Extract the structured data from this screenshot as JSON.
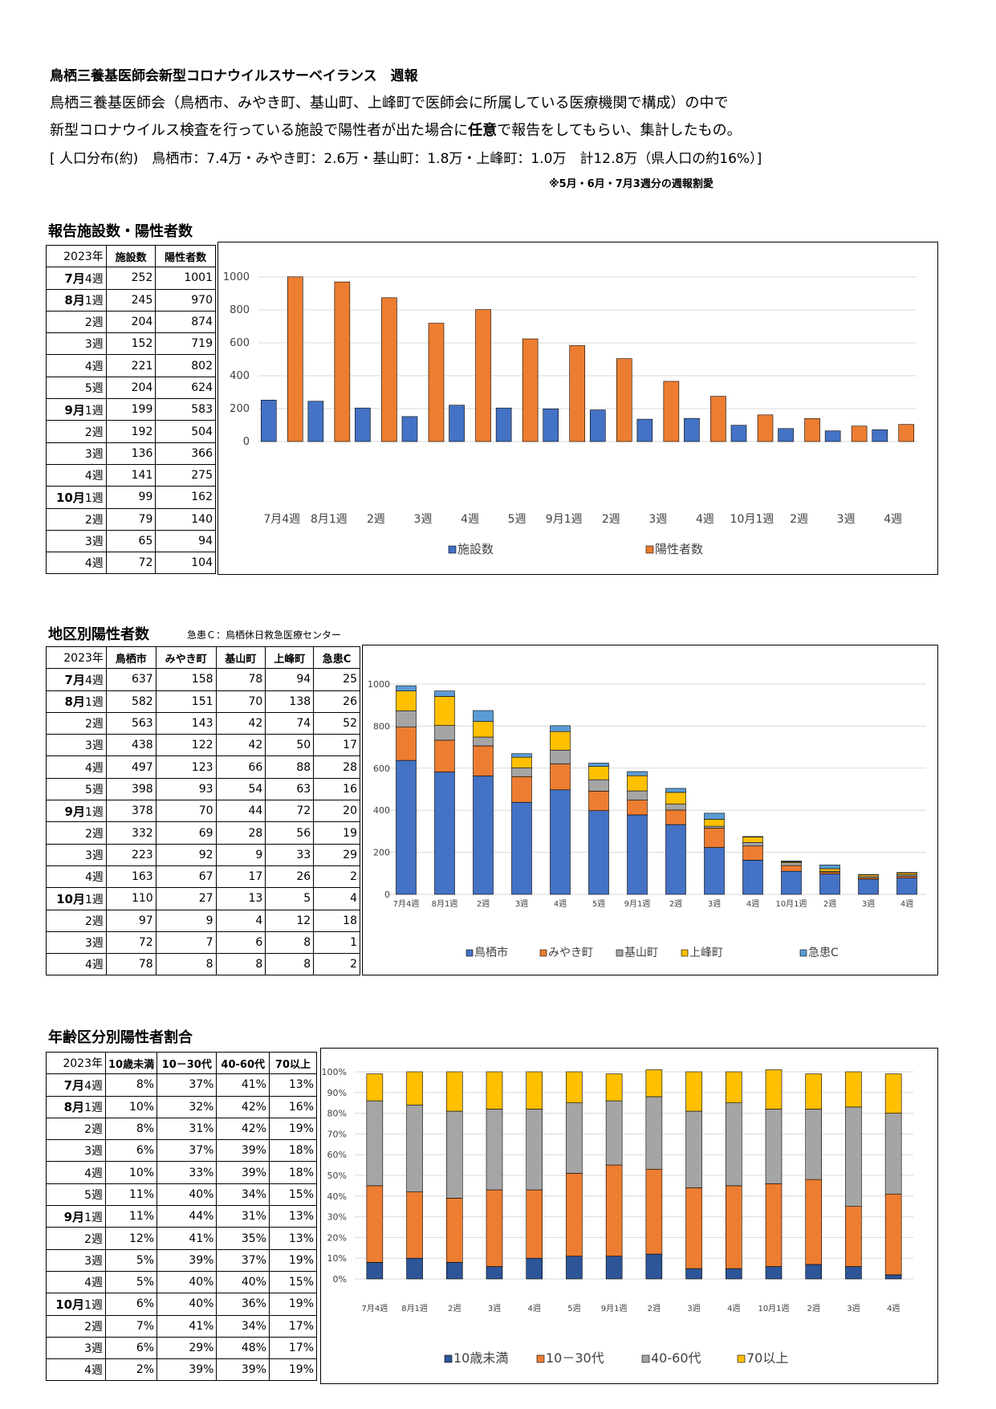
{
  "header": {
    "title": "鳥栖三養基医師会新型コロナウイルスサーベイランス　週報",
    "desc1": "鳥栖三養基医師会（鳥栖市、みやき町、基山町、上峰町で医師会に所属している医療機関で構成）の中で",
    "desc2_a": "新型コロナウイルス検査を行っている施設で陽性者が出た場合に",
    "desc2_b": "任意",
    "desc2_c": "で報告をしてもらい、集計したもの。",
    "population": "[ 人口分布(約)　鳥栖市：7.4万・みやき町：2.6万・基山町：1.8万・上峰町：1.0万　計12.8万（県人口の約16%）]",
    "note": "※5月・6月・7月3週分の週報割愛"
  },
  "week_labels": [
    {
      "month": "7月",
      "week": "4週"
    },
    {
      "month": "8月",
      "week": "1週"
    },
    {
      "month": "",
      "week": "2週"
    },
    {
      "month": "",
      "week": "3週"
    },
    {
      "month": "",
      "week": "4週"
    },
    {
      "month": "",
      "week": "5週"
    },
    {
      "month": "9月",
      "week": "1週"
    },
    {
      "month": "",
      "week": "2週"
    },
    {
      "month": "",
      "week": "3週"
    },
    {
      "month": "",
      "week": "4週"
    },
    {
      "month": "10月",
      "week": "1週"
    },
    {
      "month": "",
      "week": "2週"
    },
    {
      "month": "",
      "week": "3週"
    },
    {
      "month": "",
      "week": "4週"
    }
  ],
  "section1": {
    "title": "報告施設数・陽性者数",
    "table": {
      "headers": [
        "2023年",
        "施設数",
        "陽性者数"
      ],
      "rows": [
        [
          252,
          1001
        ],
        [
          245,
          970
        ],
        [
          204,
          874
        ],
        [
          152,
          719
        ],
        [
          221,
          802
        ],
        [
          204,
          624
        ],
        [
          199,
          583
        ],
        [
          192,
          504
        ],
        [
          136,
          366
        ],
        [
          141,
          275
        ],
        [
          99,
          162
        ],
        [
          79,
          140
        ],
        [
          65,
          94
        ],
        [
          72,
          104
        ]
      ]
    }
  },
  "section2": {
    "title": "地区別陽性者数",
    "note": "急患Ｃ：鳥栖休日救急医療センター",
    "table": {
      "headers": [
        "2023年",
        "鳥栖市",
        "みやき町",
        "基山町",
        "上峰町",
        "急患C"
      ],
      "rows": [
        [
          637,
          158,
          78,
          94,
          25
        ],
        [
          582,
          151,
          70,
          138,
          26
        ],
        [
          563,
          143,
          42,
          74,
          52
        ],
        [
          438,
          122,
          42,
          50,
          17
        ],
        [
          497,
          123,
          66,
          88,
          28
        ],
        [
          398,
          93,
          54,
          63,
          16
        ],
        [
          378,
          70,
          44,
          72,
          20
        ],
        [
          332,
          69,
          28,
          56,
          19
        ],
        [
          223,
          92,
          9,
          33,
          29
        ],
        [
          163,
          67,
          17,
          26,
          2
        ],
        [
          110,
          27,
          13,
          5,
          4
        ],
        [
          97,
          9,
          4,
          12,
          18
        ],
        [
          72,
          7,
          6,
          8,
          1
        ],
        [
          78,
          8,
          8,
          8,
          2
        ]
      ]
    }
  },
  "section3": {
    "title": "年齢区分別陽性者割合",
    "table": {
      "headers": [
        "2023年",
        "10歳未満",
        "10－30代",
        "40-60代",
        "70以上"
      ],
      "rows": [
        [
          "8%",
          "37%",
          "41%",
          "13%"
        ],
        [
          "10%",
          "32%",
          "42%",
          "16%"
        ],
        [
          "8%",
          "31%",
          "42%",
          "19%"
        ],
        [
          "6%",
          "37%",
          "39%",
          "18%"
        ],
        [
          "10%",
          "33%",
          "39%",
          "18%"
        ],
        [
          "11%",
          "40%",
          "34%",
          "15%"
        ],
        [
          "11%",
          "44%",
          "31%",
          "13%"
        ],
        [
          "12%",
          "41%",
          "35%",
          "13%"
        ],
        [
          "5%",
          "39%",
          "37%",
          "19%"
        ],
        [
          "5%",
          "40%",
          "40%",
          "15%"
        ],
        [
          "6%",
          "40%",
          "36%",
          "19%"
        ],
        [
          "7%",
          "41%",
          "34%",
          "17%"
        ],
        [
          "6%",
          "29%",
          "48%",
          "17%"
        ],
        [
          "2%",
          "39%",
          "39%",
          "19%"
        ]
      ]
    }
  },
  "chart_data": [
    {
      "type": "bar",
      "categories": [
        "7月4週",
        "8月1週",
        "2週",
        "3週",
        "4週",
        "5週",
        "9月1週",
        "2週",
        "3週",
        "4週",
        "10月1週",
        "2週",
        "3週",
        "4週"
      ],
      "series": [
        {
          "name": "施設数",
          "color": "#4472C4",
          "values": [
            252,
            245,
            204,
            152,
            221,
            204,
            199,
            192,
            136,
            141,
            99,
            79,
            65,
            72
          ]
        },
        {
          "name": "陽性者数",
          "color": "#ED7D31",
          "values": [
            1001,
            970,
            874,
            719,
            802,
            624,
            583,
            504,
            366,
            275,
            162,
            140,
            94,
            104
          ]
        }
      ],
      "ylim": [
        0,
        1000
      ],
      "yticks": [
        0,
        200,
        400,
        600,
        800,
        1000
      ],
      "grid": true,
      "legend": "bottom"
    },
    {
      "type": "bar",
      "stacked": true,
      "categories": [
        "7月4週",
        "8月1週",
        "2週",
        "3週",
        "4週",
        "5週",
        "9月1週",
        "2週",
        "3週",
        "4週",
        "10月1週",
        "2週",
        "3週",
        "4週"
      ],
      "series": [
        {
          "name": "鳥栖市",
          "color": "#4472C4",
          "values": [
            637,
            582,
            563,
            438,
            497,
            398,
            378,
            332,
            223,
            163,
            110,
            97,
            72,
            78
          ]
        },
        {
          "name": "みやき町",
          "color": "#ED7D31",
          "values": [
            158,
            151,
            143,
            122,
            123,
            93,
            70,
            69,
            92,
            67,
            27,
            9,
            7,
            8
          ]
        },
        {
          "name": "基山町",
          "color": "#A5A5A5",
          "values": [
            78,
            70,
            42,
            42,
            66,
            54,
            44,
            28,
            9,
            17,
            13,
            4,
            6,
            8
          ]
        },
        {
          "name": "上峰町",
          "color": "#FFC000",
          "values": [
            94,
            138,
            74,
            50,
            88,
            63,
            72,
            56,
            33,
            26,
            5,
            12,
            8,
            8
          ]
        },
        {
          "name": "急患C",
          "color": "#5B9BD5",
          "values": [
            25,
            26,
            52,
            17,
            28,
            16,
            20,
            19,
            29,
            2,
            4,
            18,
            1,
            2
          ]
        }
      ],
      "ylim": [
        0,
        1000
      ],
      "yticks": [
        0,
        200,
        400,
        600,
        800,
        1000
      ],
      "grid": true,
      "legend": "bottom"
    },
    {
      "type": "bar",
      "stacked": true,
      "percent": true,
      "categories": [
        "7月4週",
        "8月1週",
        "2週",
        "3週",
        "4週",
        "5週",
        "9月1週",
        "2週",
        "3週",
        "4週",
        "10月1週",
        "2週",
        "3週",
        "4週"
      ],
      "series": [
        {
          "name": "10歳未満",
          "color": "#2E5597",
          "values": [
            8,
            10,
            8,
            6,
            10,
            11,
            11,
            12,
            5,
            5,
            6,
            7,
            6,
            2
          ]
        },
        {
          "name": "10－30代",
          "color": "#ED7D31",
          "values": [
            37,
            32,
            31,
            37,
            33,
            40,
            44,
            41,
            39,
            40,
            40,
            41,
            29,
            39
          ]
        },
        {
          "name": "40-60代",
          "color": "#A5A5A5",
          "values": [
            41,
            42,
            42,
            39,
            39,
            34,
            31,
            35,
            37,
            40,
            36,
            34,
            48,
            39
          ]
        },
        {
          "name": "70以上",
          "color": "#FFC000",
          "values": [
            13,
            16,
            19,
            18,
            18,
            15,
            13,
            13,
            19,
            15,
            19,
            17,
            17,
            19
          ]
        }
      ],
      "ylim": [
        0,
        100
      ],
      "yticks": [
        "0%",
        "10%",
        "20%",
        "30%",
        "40%",
        "50%",
        "60%",
        "70%",
        "80%",
        "90%",
        "100%"
      ],
      "grid": true,
      "legend": "bottom"
    }
  ]
}
